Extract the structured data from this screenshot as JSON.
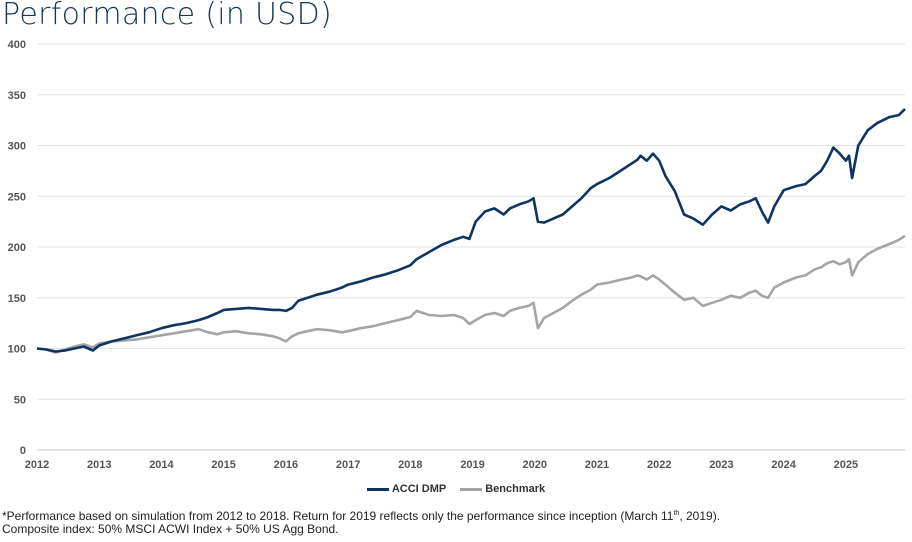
{
  "title": "Performance (in USD)",
  "colors": {
    "acci": "#0e3461",
    "benchmark": "#a5a5a5",
    "grid": "#e3e3e3"
  },
  "legend": {
    "items": [
      "ACCI DMP",
      "Benchmark"
    ]
  },
  "footnote": {
    "line1_pre": "*Performance based on simulation from 2012 to 2018. Return for 2019 reflects only the performance since inception (March 11",
    "line1_sup": "th",
    "line1_post": ", 2019).",
    "line2": "Composite index: 50% MSCI ACWI Index + 50% US Agg Bond."
  },
  "chart_data": {
    "type": "line",
    "title": "Performance (in USD)",
    "xlabel": "",
    "ylabel": "",
    "xlim": [
      2012.0,
      2025.95
    ],
    "ylim": [
      0,
      400
    ],
    "yticks": [
      0,
      50,
      100,
      150,
      200,
      250,
      300,
      350,
      400
    ],
    "xticks": [
      "2012",
      "2013",
      "2014",
      "2015",
      "2016",
      "2017",
      "2018",
      "2019",
      "2020",
      "2021",
      "2022",
      "2023",
      "2024",
      "2025"
    ],
    "grid": true,
    "legend_position": "bottom-center",
    "series": [
      {
        "name": "ACCI DMP",
        "x": [
          2012.0,
          2012.15,
          2012.3,
          2012.45,
          2012.6,
          2012.75,
          2012.9,
          2013.0,
          2013.2,
          2013.4,
          2013.6,
          2013.8,
          2014.0,
          2014.2,
          2014.4,
          2014.6,
          2014.75,
          2014.9,
          2015.0,
          2015.2,
          2015.4,
          2015.6,
          2015.8,
          2015.9,
          2016.0,
          2016.1,
          2016.2,
          2016.35,
          2016.5,
          2016.7,
          2016.9,
          2017.0,
          2017.2,
          2017.4,
          2017.6,
          2017.8,
          2018.0,
          2018.1,
          2018.3,
          2018.5,
          2018.7,
          2018.85,
          2018.95,
          2019.05,
          2019.2,
          2019.35,
          2019.5,
          2019.6,
          2019.75,
          2019.9,
          2019.98,
          2020.05,
          2020.15,
          2020.3,
          2020.45,
          2020.6,
          2020.75,
          2020.9,
          2021.0,
          2021.2,
          2021.4,
          2021.55,
          2021.65,
          2021.7,
          2021.8,
          2021.9,
          2022.0,
          2022.1,
          2022.25,
          2022.4,
          2022.55,
          2022.7,
          2022.85,
          2023.0,
          2023.15,
          2023.3,
          2023.45,
          2023.55,
          2023.65,
          2023.75,
          2023.85,
          2024.0,
          2024.2,
          2024.35,
          2024.5,
          2024.6,
          2024.7,
          2024.8,
          2024.9,
          2025.0,
          2025.05,
          2025.1,
          2025.2,
          2025.35,
          2025.5,
          2025.7,
          2025.85,
          2025.95
        ],
        "values": [
          100,
          99,
          97,
          98,
          100,
          102,
          98,
          103,
          107,
          110,
          113,
          116,
          120,
          123,
          125,
          128,
          131,
          135,
          138,
          139,
          140,
          139,
          138,
          138,
          137,
          140,
          147,
          150,
          153,
          156,
          160,
          163,
          166,
          170,
          173,
          177,
          182,
          188,
          195,
          202,
          207,
          210,
          208,
          225,
          235,
          238,
          232,
          238,
          242,
          245,
          248,
          225,
          224,
          228,
          232,
          240,
          248,
          258,
          262,
          268,
          276,
          282,
          286,
          290,
          285,
          292,
          285,
          270,
          255,
          232,
          228,
          222,
          232,
          240,
          236,
          242,
          245,
          248,
          235,
          224,
          240,
          256,
          260,
          262,
          270,
          275,
          285,
          298,
          292,
          285,
          290,
          268,
          300,
          315,
          322,
          328,
          330,
          336
        ]
      },
      {
        "name": "Benchmark",
        "x": [
          2012.0,
          2012.15,
          2012.3,
          2012.45,
          2012.6,
          2012.75,
          2012.9,
          2013.0,
          2013.2,
          2013.4,
          2013.6,
          2013.8,
          2014.0,
          2014.2,
          2014.4,
          2014.6,
          2014.75,
          2014.9,
          2015.0,
          2015.2,
          2015.4,
          2015.6,
          2015.8,
          2015.9,
          2016.0,
          2016.1,
          2016.2,
          2016.35,
          2016.5,
          2016.7,
          2016.9,
          2017.0,
          2017.2,
          2017.4,
          2017.6,
          2017.8,
          2018.0,
          2018.1,
          2018.3,
          2018.5,
          2018.7,
          2018.85,
          2018.95,
          2019.05,
          2019.2,
          2019.35,
          2019.5,
          2019.6,
          2019.75,
          2019.9,
          2019.98,
          2020.05,
          2020.15,
          2020.3,
          2020.45,
          2020.6,
          2020.75,
          2020.9,
          2021.0,
          2021.2,
          2021.4,
          2021.55,
          2021.65,
          2021.7,
          2021.8,
          2021.9,
          2022.0,
          2022.1,
          2022.25,
          2022.4,
          2022.55,
          2022.7,
          2022.85,
          2023.0,
          2023.15,
          2023.3,
          2023.45,
          2023.55,
          2023.65,
          2023.75,
          2023.85,
          2024.0,
          2024.2,
          2024.35,
          2024.5,
          2024.6,
          2024.7,
          2024.8,
          2024.9,
          2025.0,
          2025.05,
          2025.1,
          2025.2,
          2025.35,
          2025.5,
          2025.7,
          2025.85,
          2025.95
        ],
        "values": [
          100,
          99,
          96,
          99,
          102,
          104,
          101,
          105,
          107,
          108,
          109,
          111,
          113,
          115,
          117,
          119,
          116,
          114,
          116,
          117,
          115,
          114,
          112,
          110,
          107,
          112,
          115,
          117,
          119,
          118,
          116,
          117,
          120,
          122,
          125,
          128,
          131,
          137,
          133,
          132,
          133,
          130,
          124,
          128,
          133,
          135,
          132,
          137,
          140,
          142,
          145,
          120,
          130,
          135,
          140,
          147,
          153,
          158,
          163,
          165,
          168,
          170,
          172,
          171,
          168,
          172,
          168,
          163,
          155,
          148,
          150,
          142,
          145,
          148,
          152,
          150,
          155,
          157,
          152,
          150,
          160,
          165,
          170,
          172,
          178,
          180,
          184,
          186,
          183,
          185,
          188,
          172,
          185,
          193,
          198,
          203,
          207,
          211
        ]
      }
    ]
  }
}
